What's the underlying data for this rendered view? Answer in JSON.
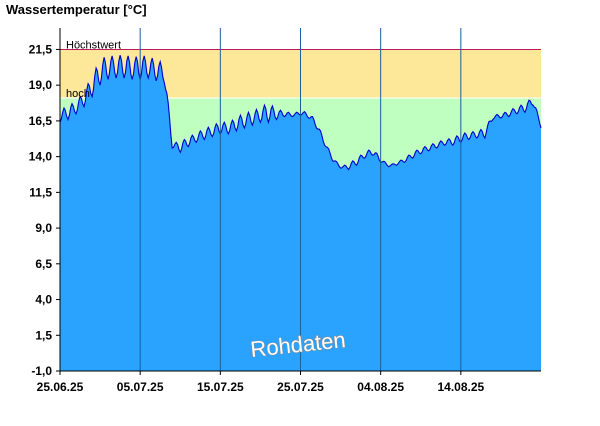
{
  "chart_data": {
    "type": "area",
    "ylabel": "Wassertemperatur [°C]",
    "ylim": [
      -1.0,
      23.0
    ],
    "yticks": [
      "-1,0",
      "1,5",
      "4,0",
      "6,5",
      "9,0",
      "11,5",
      "14,0",
      "16,5",
      "19,0",
      "21,5"
    ],
    "ytick_values": [
      -1.0,
      1.5,
      4.0,
      6.5,
      9.0,
      11.5,
      14.0,
      16.5,
      19.0,
      21.5
    ],
    "x_start": "2025-06-25",
    "x_end": "2025-08-24",
    "xticks": [
      "25.06.25",
      "05.07.25",
      "15.07.25",
      "25.07.25",
      "04.08.25",
      "14.08.25"
    ],
    "xtick_dates": [
      "2025-06-25",
      "2025-07-05",
      "2025-07-15",
      "2025-07-25",
      "2025-08-04",
      "2025-08-14"
    ],
    "bands": [
      {
        "label": "Höchstwert",
        "from": 18.1,
        "to": 21.5,
        "color": "#fde89a",
        "line_color": "#c2185b"
      },
      {
        "label": "hoch",
        "from": -1.0,
        "to": 18.1,
        "color": "#bfffbf",
        "line_color": "#ffffff"
      }
    ],
    "series": [
      {
        "color": "#29a3ff",
        "line_color": "#0000cc",
        "x": [
          "2025-06-25",
          "2025-06-26",
          "2025-06-27",
          "2025-06-28",
          "2025-06-29",
          "2025-06-30",
          "2025-07-01",
          "2025-07-02",
          "2025-07-03",
          "2025-07-04",
          "2025-07-05",
          "2025-07-06",
          "2025-07-07",
          "2025-07-08",
          "2025-07-09",
          "2025-07-10",
          "2025-07-11",
          "2025-07-12",
          "2025-07-13",
          "2025-07-14",
          "2025-07-15",
          "2025-07-16",
          "2025-07-17",
          "2025-07-18",
          "2025-07-19",
          "2025-07-20",
          "2025-07-21",
          "2025-07-22",
          "2025-07-23",
          "2025-07-24",
          "2025-07-25",
          "2025-07-26",
          "2025-07-27",
          "2025-07-28",
          "2025-07-29",
          "2025-07-30",
          "2025-07-31",
          "2025-08-01",
          "2025-08-02",
          "2025-08-03",
          "2025-08-04",
          "2025-08-05",
          "2025-08-06",
          "2025-08-07",
          "2025-08-08",
          "2025-08-09",
          "2025-08-10",
          "2025-08-11",
          "2025-08-12",
          "2025-08-13",
          "2025-08-14",
          "2025-08-15",
          "2025-08-16",
          "2025-08-17",
          "2025-08-18",
          "2025-08-19",
          "2025-08-20",
          "2025-08-21",
          "2025-08-22",
          "2025-08-23",
          "2025-08-24"
        ],
        "low": [
          16.4,
          16.6,
          17.0,
          17.5,
          18.2,
          19.0,
          19.4,
          19.5,
          19.5,
          19.4,
          19.4,
          19.5,
          19.3,
          19.2,
          14.6,
          14.3,
          14.7,
          15.0,
          15.2,
          15.4,
          15.6,
          15.6,
          15.8,
          16.0,
          16.2,
          16.4,
          16.4,
          16.6,
          16.8,
          16.8,
          16.9,
          16.7,
          16.0,
          14.8,
          13.7,
          13.2,
          13.1,
          13.4,
          13.9,
          14.1,
          13.6,
          13.3,
          13.4,
          13.6,
          13.9,
          14.2,
          14.4,
          14.6,
          14.8,
          14.8,
          15.0,
          15.2,
          15.3,
          15.3,
          16.6,
          16.7,
          16.8,
          17.0,
          17.1,
          17.6,
          16.0
        ],
        "high": [
          17.2,
          17.6,
          17.8,
          18.6,
          19.6,
          20.8,
          21.1,
          21.0,
          21.2,
          20.9,
          21.1,
          21.0,
          20.8,
          20.5,
          15.0,
          15.0,
          15.4,
          15.6,
          16.0,
          16.1,
          16.5,
          16.3,
          16.8,
          17.0,
          17.2,
          17.4,
          17.8,
          17.3,
          17.2,
          17.0,
          17.2,
          17.1,
          16.5,
          15.1,
          14.0,
          13.3,
          13.5,
          13.9,
          14.3,
          14.6,
          13.9,
          13.4,
          13.6,
          13.9,
          14.3,
          14.6,
          14.8,
          15.0,
          15.2,
          15.3,
          15.6,
          15.7,
          15.8,
          16.0,
          16.9,
          17.0,
          17.2,
          17.5,
          17.7,
          18.2,
          16.2
        ]
      }
    ],
    "annotation": "Rohdaten"
  }
}
